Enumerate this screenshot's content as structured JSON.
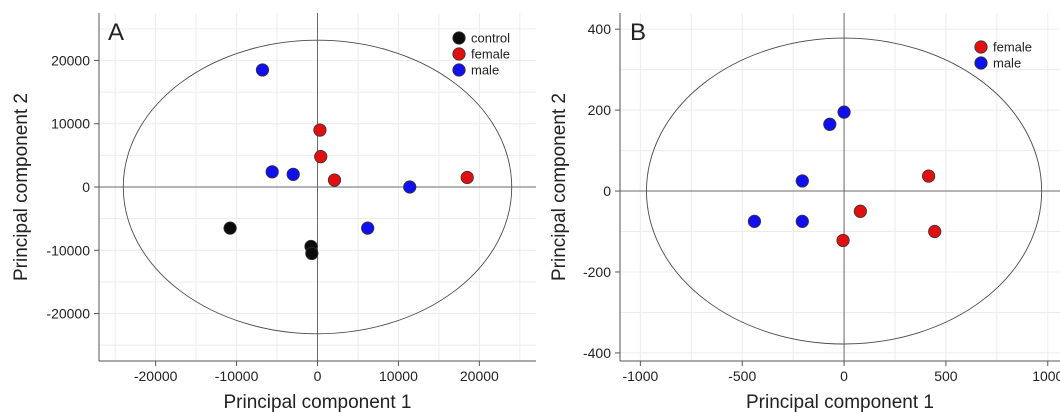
{
  "chart_data": [
    {
      "type": "scatter",
      "panel_label": "A",
      "xlabel": "Principal component 1",
      "ylabel": "Principal component 2",
      "xlim": [
        -27000,
        27000
      ],
      "ylim": [
        -27500,
        27500
      ],
      "xticks": [
        -20000,
        -10000,
        0,
        10000,
        20000
      ],
      "yticks": [
        -20000,
        -10000,
        0,
        10000,
        20000
      ],
      "grid": true,
      "legend_position": "top-right",
      "ellipse": {
        "cx": 0,
        "cy": 0,
        "rx": 24000,
        "ry": 23200
      },
      "series": [
        {
          "name": "control",
          "color": "#0b0b0b",
          "points": [
            [
              -10800,
              -6500
            ],
            [
              -800,
              -9400
            ],
            [
              -700,
              -10500
            ]
          ]
        },
        {
          "name": "female",
          "color": "#e01010",
          "points": [
            [
              300,
              9000
            ],
            [
              400,
              4800
            ],
            [
              2100,
              1100
            ],
            [
              18500,
              1500
            ]
          ]
        },
        {
          "name": "male",
          "color": "#1010ee",
          "points": [
            [
              -6800,
              18500
            ],
            [
              -5600,
              2400
            ],
            [
              -3000,
              2000
            ],
            [
              6200,
              -6500
            ],
            [
              11400,
              0
            ]
          ]
        }
      ]
    },
    {
      "type": "scatter",
      "panel_label": "B",
      "xlabel": "Principal component 1",
      "ylabel": "Principal component 2",
      "xlim": [
        -1100,
        1060
      ],
      "ylim": [
        -420,
        440
      ],
      "xticks": [
        -1000,
        -500,
        0,
        500,
        1000
      ],
      "yticks": [
        -400,
        -200,
        0,
        200,
        400
      ],
      "grid": true,
      "legend_position": "top-right",
      "ellipse": {
        "cx": 0,
        "cy": 0,
        "rx": 970,
        "ry": 378
      },
      "series": [
        {
          "name": "female",
          "color": "#e01010",
          "points": [
            [
              415,
              37
            ],
            [
              80,
              -50
            ],
            [
              -5,
              -122
            ],
            [
              445,
              -100
            ]
          ]
        },
        {
          "name": "male",
          "color": "#1010ee",
          "points": [
            [
              0,
              195
            ],
            [
              -70,
              165
            ],
            [
              -205,
              25
            ],
            [
              -205,
              -75
            ],
            [
              -440,
              -75
            ]
          ]
        }
      ]
    }
  ]
}
